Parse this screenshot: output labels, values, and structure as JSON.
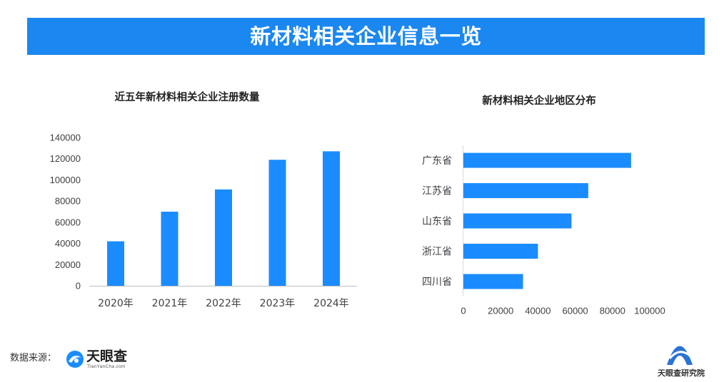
{
  "header": {
    "title": "新材料相关企业信息一览"
  },
  "chart_data": [
    {
      "type": "bar",
      "orientation": "vertical",
      "title": "近五年新材料相关企业注册数量",
      "categories": [
        "2020年",
        "2021年",
        "2022年",
        "2023年",
        "2024年"
      ],
      "values": [
        42000,
        70000,
        91000,
        119000,
        127000
      ],
      "ylim": [
        0,
        140000
      ],
      "yticks": [
        0,
        20000,
        40000,
        60000,
        80000,
        100000,
        120000,
        140000
      ],
      "grid": false,
      "legend": "none",
      "color": "#1a8cff"
    },
    {
      "type": "bar",
      "orientation": "horizontal",
      "title": "新材料相关企业地区分布",
      "categories": [
        "广东省",
        "江苏省",
        "山东省",
        "浙江省",
        "四川省"
      ],
      "values": [
        90000,
        67000,
        58000,
        40000,
        32000
      ],
      "xlim": [
        0,
        100000
      ],
      "xticks": [
        0,
        20000,
        40000,
        60000,
        80000,
        100000
      ],
      "grid": false,
      "legend": "none",
      "color": "#1a8cff"
    }
  ],
  "footer": {
    "source_label": "数据来源：",
    "source_logo": {
      "icon": "tianyancha-logo-icon",
      "name": "天眼查",
      "domain": "TianYanCha.com"
    },
    "brand": {
      "icon": "tianyancha-research-logo-icon",
      "name": "天眼查研究院"
    }
  },
  "colors": {
    "banner": "#1b87f0",
    "axis": "#bfbfbf",
    "text": "#333333"
  }
}
